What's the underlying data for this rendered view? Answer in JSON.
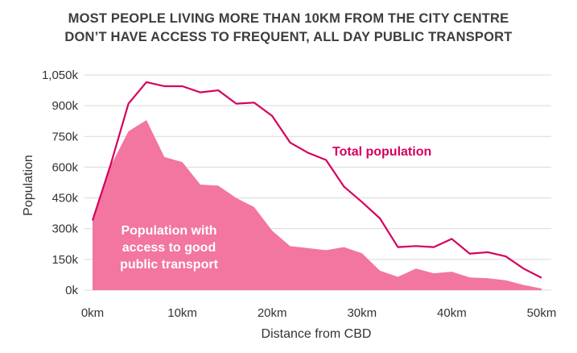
{
  "chart_data": {
    "type": "area",
    "title_lines": [
      "MOST PEOPLE LIVING MORE THAN 10KM FROM THE CITY CENTRE",
      "DON’T HAVE ACCESS TO FREQUENT, ALL DAY PUBLIC TRANSPORT"
    ],
    "xlabel": "Distance from CBD",
    "ylabel": "Population",
    "xlim": [
      0,
      50
    ],
    "ylim": [
      0,
      1050
    ],
    "xticks": [
      0,
      10,
      20,
      30,
      40,
      50
    ],
    "xtick_labels": [
      "0km",
      "10km",
      "20km",
      "30km",
      "40km",
      "50km"
    ],
    "yticks": [
      0,
      150,
      300,
      450,
      600,
      750,
      900,
      1050
    ],
    "ytick_labels": [
      "0k",
      "150k",
      "300k",
      "450k",
      "600k",
      "750k",
      "900k",
      "1,050k"
    ],
    "grid": "horizontal",
    "x": [
      0,
      2,
      4,
      6,
      8,
      10,
      12,
      14,
      16,
      18,
      20,
      22,
      24,
      26,
      28,
      30,
      32,
      34,
      36,
      38,
      40,
      42,
      44,
      46,
      48,
      50
    ],
    "series": [
      {
        "name": "Total population",
        "style": "line",
        "color": "#d6005f",
        "values": [
          340,
          610,
          910,
          1015,
          995,
          995,
          965,
          975,
          910,
          915,
          850,
          720,
          670,
          635,
          505,
          430,
          350,
          210,
          215,
          210,
          250,
          178,
          185,
          165,
          105,
          60
        ]
      },
      {
        "name": "Population with access to good public transport",
        "label_lines": [
          "Population with",
          "access to good",
          "public transport"
        ],
        "style": "area",
        "color": "#f2769f",
        "values": [
          340,
          605,
          775,
          830,
          650,
          625,
          515,
          510,
          450,
          405,
          290,
          215,
          205,
          195,
          210,
          180,
          95,
          65,
          105,
          82,
          90,
          62,
          58,
          48,
          25,
          8
        ]
      }
    ]
  }
}
